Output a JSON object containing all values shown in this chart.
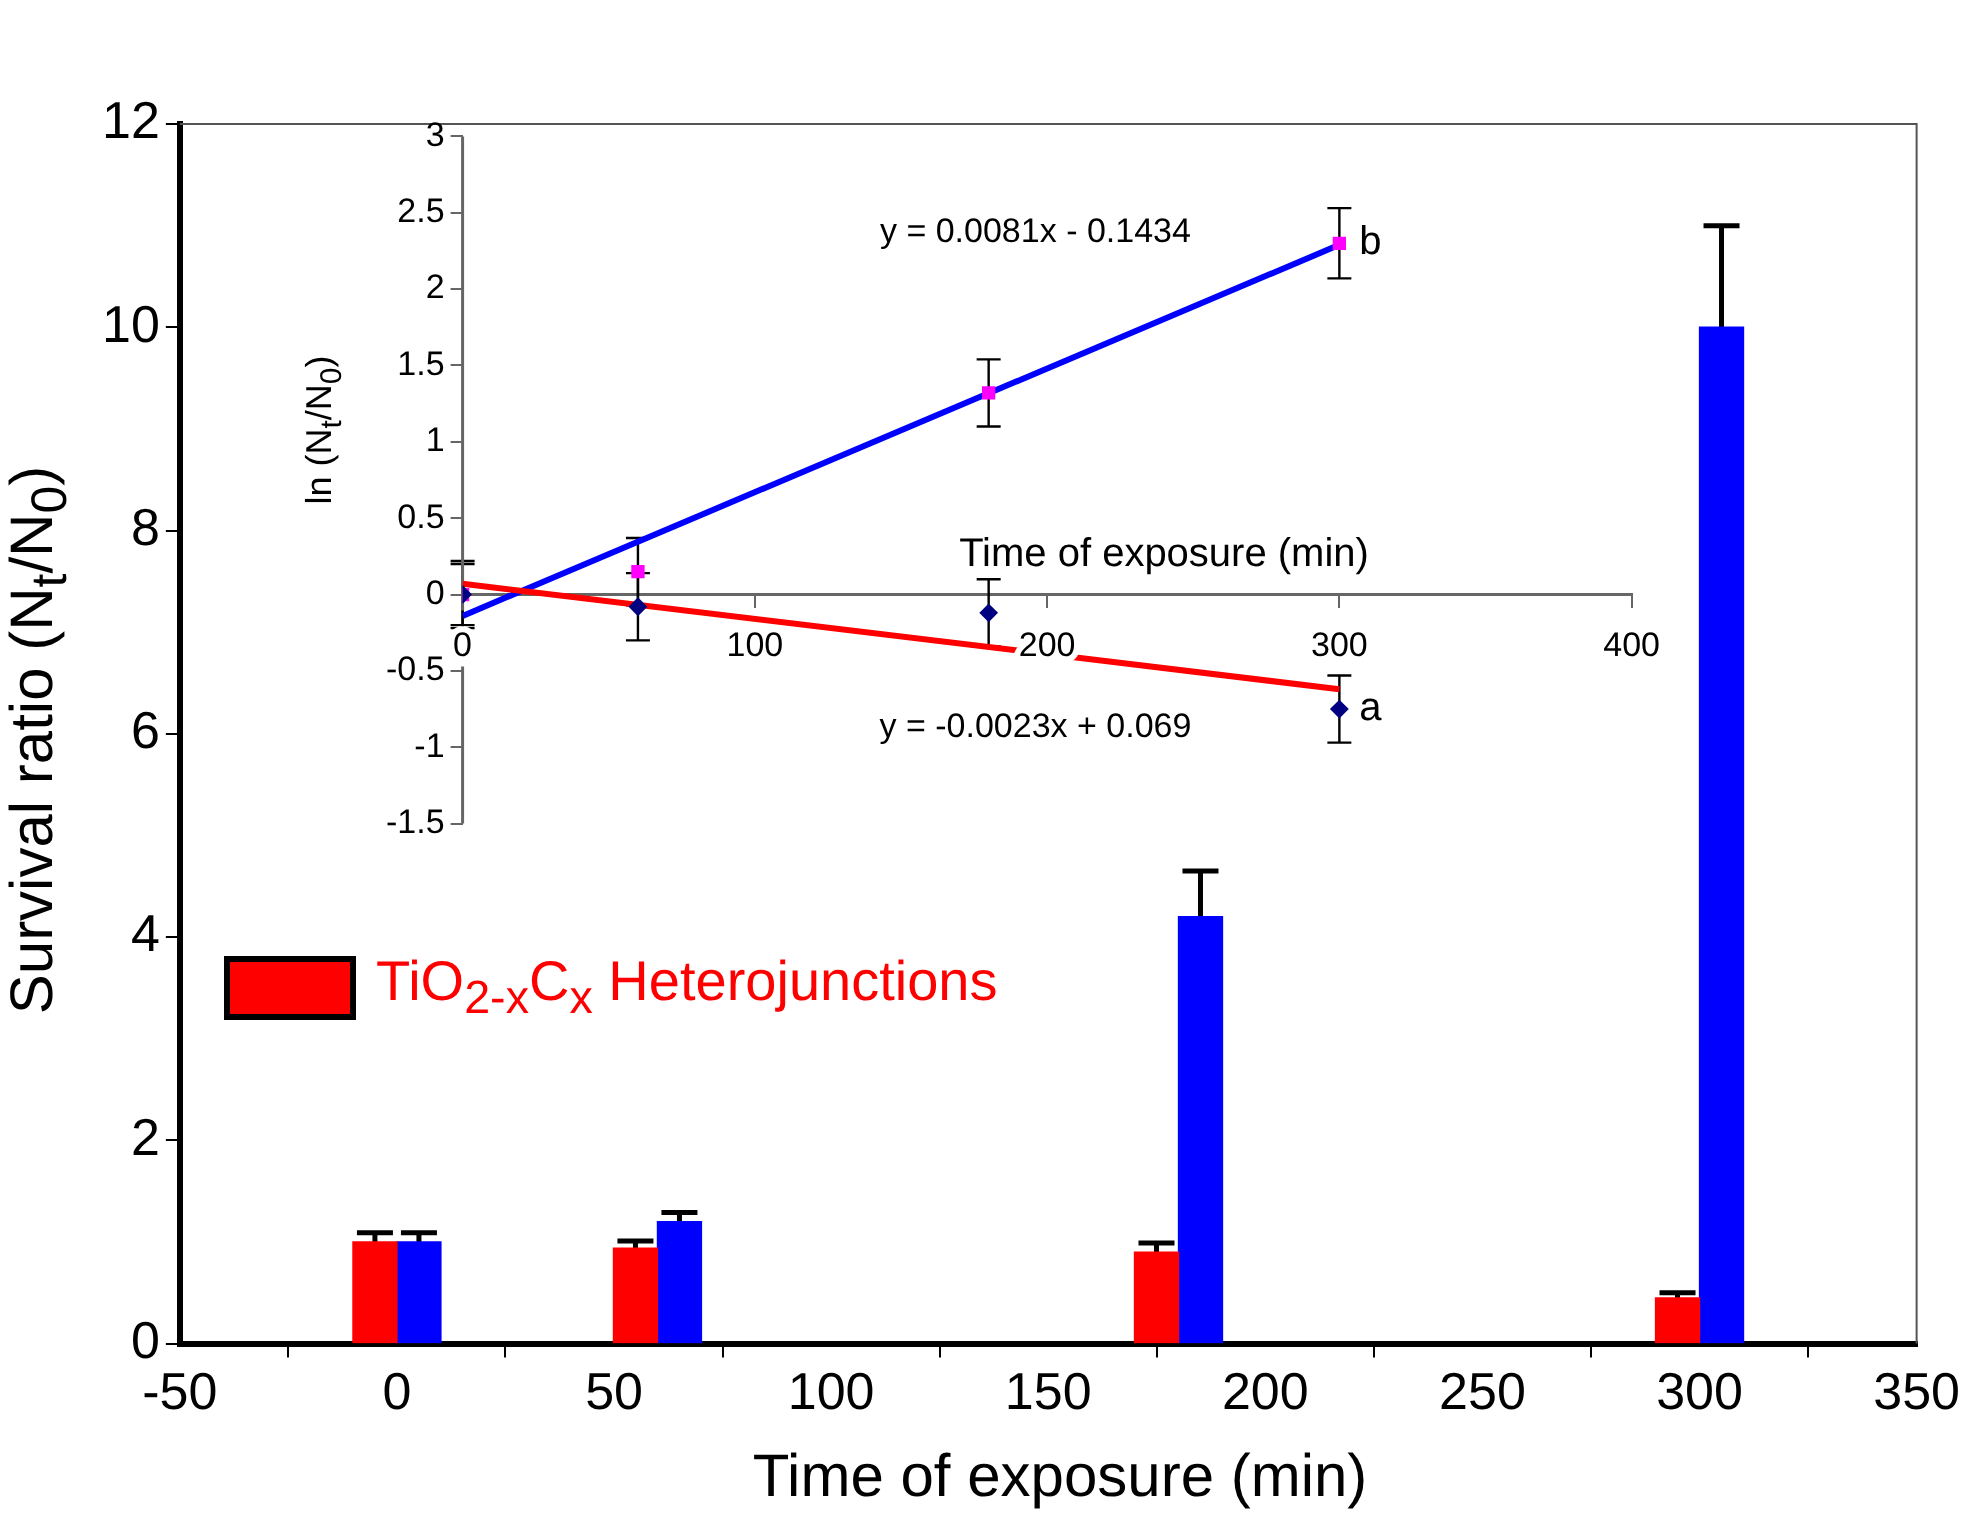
{
  "chart_data": [
    {
      "type": "bar",
      "xlabel": "Time of exposure (min)",
      "ylabel": "Survival ratio (N$_{t}$/N$_{0}$)",
      "x": [
        0,
        60,
        180,
        300
      ],
      "xlim": [
        -50,
        350
      ],
      "xticks": [
        -50,
        0,
        50,
        100,
        150,
        200,
        250,
        300,
        350
      ],
      "ylim": [
        0,
        12
      ],
      "yticks": [
        0,
        2,
        4,
        6,
        8,
        10,
        12
      ],
      "grid": false,
      "legend": "left",
      "series": [
        {
          "name": "TiO$_{2-x}$C$_{x}$ Heterojunctions",
          "color": "#ff0000",
          "values": [
            1.0,
            0.94,
            0.9,
            0.45
          ],
          "errors": [
            0.09,
            0.07,
            0.09,
            0.05
          ]
        },
        {
          "color": "#0000ff",
          "values": [
            1.0,
            1.2,
            4.2,
            10.0
          ],
          "errors": [
            0.09,
            0.09,
            0.45,
            1.0
          ]
        }
      ]
    },
    {
      "type": "scatter",
      "xlabel": "Time of exposure (min)",
      "ylabel": "ln (N$_{t}$/N$_{0}$)",
      "xlim": [
        0,
        400
      ],
      "xticks": [
        0,
        100,
        200,
        300,
        400
      ],
      "ylim": [
        -1.5,
        3
      ],
      "yticks": [
        -1.5,
        -1,
        -0.5,
        0,
        0.5,
        1,
        1.5,
        2,
        2.5,
        3
      ],
      "grid": false,
      "legend": false,
      "series": [
        {
          "name": "a",
          "type": "scatter",
          "marker": "diamond",
          "color": "#000080",
          "x": [
            0,
            60,
            180,
            300
          ],
          "values": [
            0,
            -0.08,
            -0.12,
            -0.75
          ],
          "errors": [
            0.2,
            0.22,
            0.22,
            0.22
          ]
        },
        {
          "name": "b",
          "type": "scatter",
          "marker": "square",
          "color": "#ff00ff",
          "x": [
            0,
            60,
            180,
            300
          ],
          "values": [
            0,
            0.15,
            1.32,
            2.3
          ],
          "errors": [
            0.22,
            0.22,
            0.22,
            0.23
          ]
        },
        {
          "type": "line",
          "color": "#ff0000",
          "x": [
            0,
            300
          ],
          "values": [
            0.07,
            -0.62
          ]
        },
        {
          "type": "line",
          "color": "#0000ff",
          "x": [
            0,
            300
          ],
          "values": [
            -0.14,
            2.29
          ]
        }
      ],
      "annotations": [
        "y = 0.0081x - 0.1434",
        "y = -0.0023x + 0.069"
      ]
    }
  ]
}
